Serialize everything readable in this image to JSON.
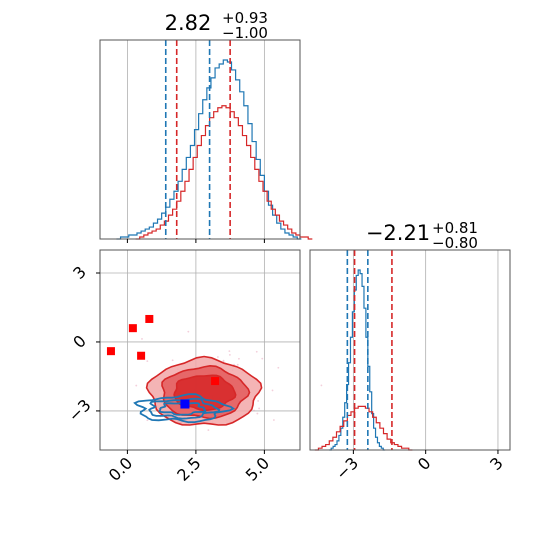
{
  "chart_data": {
    "type": "corner",
    "grid": true,
    "colors": {
      "blue": "#1f77b4",
      "red": "#d62728",
      "grid": "#b0b0b0",
      "axis": "#555555",
      "marker": "#0000ff",
      "point": "#ff0000"
    },
    "panels": [
      {
        "id": "hist-param-1",
        "type": "histogram",
        "title": {
          "value": "2.82",
          "plus": "+0.93",
          "minus": "−1.00"
        },
        "xlim": [
          -1.0,
          6.3
        ],
        "gridlines_x": [
          0.0,
          2.5,
          5.0
        ],
        "series": [
          {
            "name": "",
            "color": "#1f77b4",
            "quantiles": [
              1.4,
              3.0
            ],
            "bins": {
              "start": -0.4,
              "width": 0.15,
              "counts": [
                0,
                1,
                1,
                2,
                2,
                3,
                4,
                5,
                6,
                8,
                10,
                13,
                16,
                20,
                24,
                29,
                35,
                41,
                47,
                55,
                63,
                70,
                76,
                81,
                86,
                88,
                90,
                89,
                85,
                80,
                74,
                67,
                58,
                49,
                40,
                32,
                24,
                17,
                12,
                8,
                5,
                3,
                2,
                1,
                0
              ]
            }
          },
          {
            "name": "",
            "color": "#d62728",
            "quantiles": [
              1.8,
              3.75
            ],
            "bins": {
              "start": 0.3,
              "width": 0.15,
              "counts": [
                0,
                1,
                2,
                3,
                4,
                5,
                7,
                9,
                12,
                15,
                19,
                24,
                29,
                35,
                41,
                47,
                52,
                57,
                61,
                64,
                66,
                67,
                66,
                64,
                61,
                57,
                52,
                47,
                41,
                35,
                29,
                24,
                19,
                15,
                12,
                9,
                7,
                5,
                3,
                2,
                1,
                1,
                0
              ]
            }
          }
        ]
      },
      {
        "id": "hist-param-2",
        "type": "histogram",
        "title": {
          "value": "−2.21",
          "plus": "+0.81",
          "minus": "−0.80"
        },
        "xlim": [
          -4.8,
          3.5
        ],
        "xticks": [
          "−3",
          "0",
          "3"
        ],
        "xtick_values": [
          -3,
          0,
          3
        ],
        "series": [
          {
            "name": "",
            "color": "#1f77b4",
            "quantiles": [
              -3.25,
              -2.4
            ],
            "bins": {
              "start": -4.0,
              "width": 0.08,
              "counts": [
                0,
                1,
                2,
                3,
                5,
                8,
                12,
                18,
                26,
                36,
                48,
                62,
                76,
                88,
                96,
                99,
                97,
                90,
                78,
                62,
                46,
                32,
                20,
                12,
                7,
                4,
                2,
                1,
                0
              ]
            }
          },
          {
            "name": "",
            "color": "#d62728",
            "quantiles": [
              -2.95,
              -1.4
            ],
            "bins": {
              "start": -4.6,
              "width": 0.15,
              "counts": [
                0,
                1,
                2,
                3,
                5,
                7,
                10,
                13,
                16,
                19,
                21,
                23,
                24,
                24,
                23,
                21,
                18,
                15,
                12,
                9,
                6,
                4,
                3,
                2,
                1,
                1,
                0
              ]
            }
          }
        ]
      },
      {
        "id": "scatter-2d",
        "type": "contour",
        "xlim": [
          -1.0,
          6.3
        ],
        "ylim": [
          -4.7,
          4.0
        ],
        "xticks": [
          "0.0",
          "2.5",
          "5.0"
        ],
        "xtick_values": [
          0.0,
          2.5,
          5.0
        ],
        "yticks": [
          "3",
          "0",
          "−3"
        ],
        "ytick_values": [
          3,
          0,
          -3
        ],
        "red_contours": {
          "center": [
            2.8,
            -2.2
          ],
          "radii": [
            [
              2.0,
              1.45
            ],
            [
              1.55,
              1.1
            ],
            [
              1.1,
              0.75
            ]
          ]
        },
        "blue_contours": {
          "center": [
            2.0,
            -2.9
          ],
          "radii": [
            [
              1.6,
              0.55
            ],
            [
              1.2,
              0.4
            ],
            [
              0.8,
              0.25
            ]
          ]
        },
        "red_points": [
          [
            -0.6,
            -0.4
          ],
          [
            0.2,
            0.6
          ],
          [
            0.5,
            -0.6
          ],
          [
            0.8,
            1.0
          ],
          [
            3.2,
            -1.7
          ]
        ],
        "truth_marker": [
          2.1,
          -2.7
        ]
      }
    ]
  }
}
